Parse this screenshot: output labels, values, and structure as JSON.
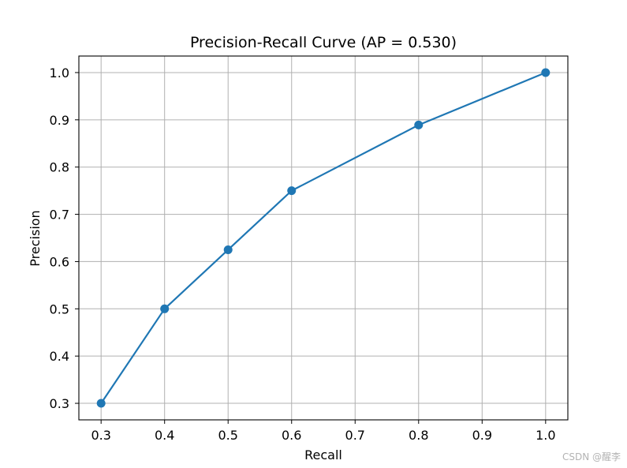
{
  "chart_data": {
    "type": "line",
    "title": "Precision-Recall Curve (AP = 0.530)",
    "xlabel": "Recall",
    "ylabel": "Precision",
    "x": [
      0.3,
      0.4,
      0.5,
      0.6,
      0.8,
      1.0
    ],
    "series": [
      {
        "values": [
          0.3,
          0.5,
          0.625,
          0.75,
          0.889,
          1.0
        ],
        "color": "#1f77b4",
        "marker": "circle"
      }
    ],
    "xlim": [
      0.265,
      1.035
    ],
    "ylim": [
      0.265,
      1.035
    ],
    "xticks": [
      "0.3",
      "0.4",
      "0.5",
      "0.6",
      "0.7",
      "0.8",
      "0.9",
      "1.0"
    ],
    "yticks": [
      "0.3",
      "0.4",
      "0.5",
      "0.6",
      "0.7",
      "0.8",
      "0.9",
      "1.0"
    ],
    "grid": true,
    "legend": false,
    "colors": {
      "grid": "#b0b0b0",
      "axes": "#000000"
    }
  },
  "watermark": "CSDN @醒李"
}
